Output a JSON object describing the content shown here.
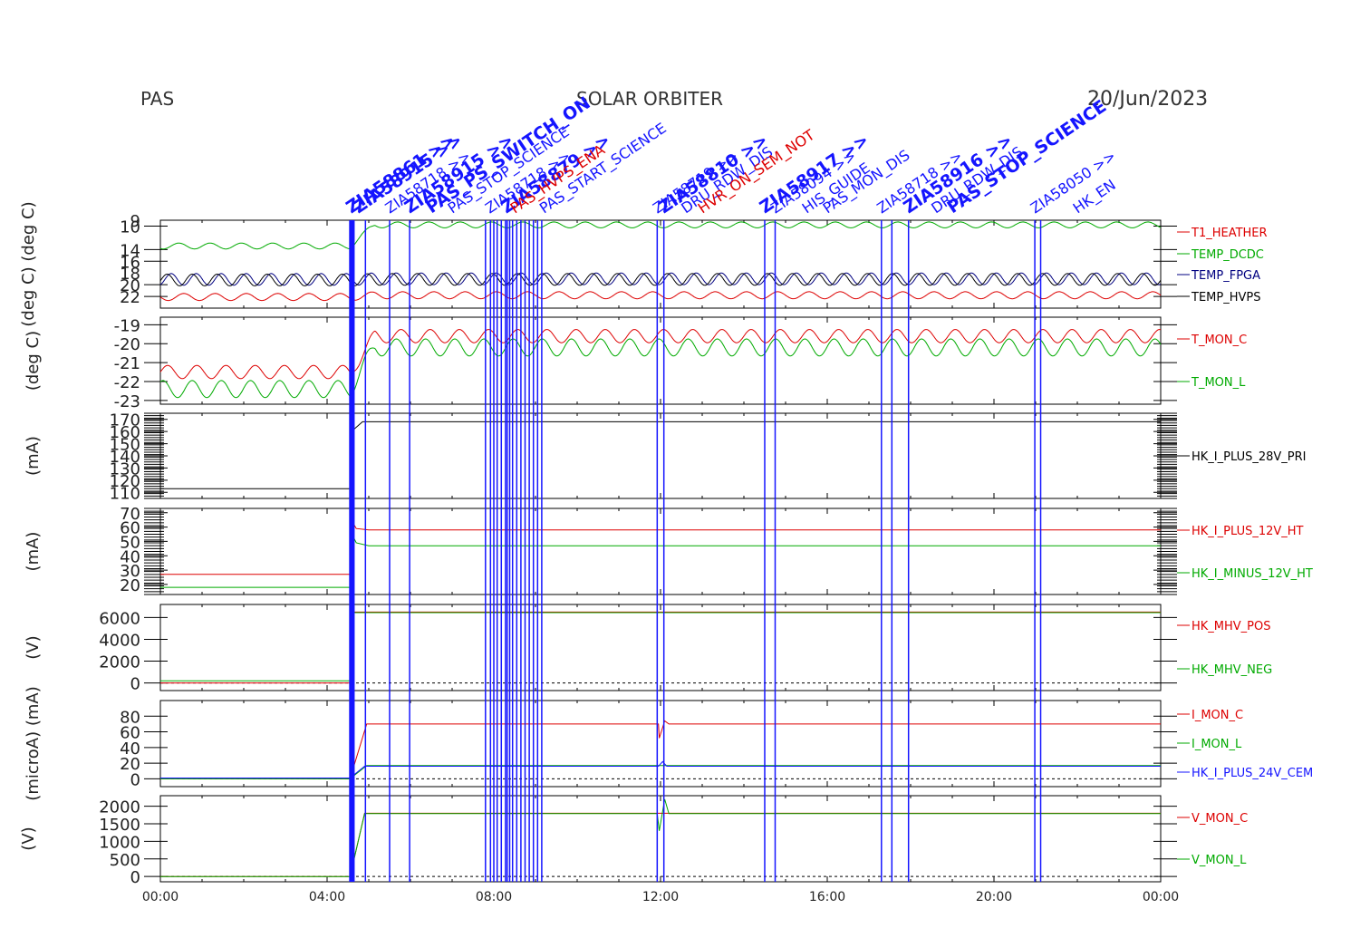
{
  "header": {
    "left": "PAS",
    "center": "SOLAR ORBITER",
    "right": "20/Jun/2023"
  },
  "colors": {
    "red": "#dd0000",
    "green": "#00aa00",
    "blue": "#1515ff",
    "black": "#000000",
    "navy": "#000080"
  },
  "x_axis": {
    "ticks": [
      "00:00",
      "04:00",
      "08:00",
      "12:00",
      "16:00",
      "20:00",
      "00:00"
    ],
    "range_hours": [
      0,
      24
    ]
  },
  "event_lines": {
    "note_hours": [
      4.55,
      4.58,
      4.61,
      4.64,
      4.92,
      5.5,
      5.98,
      7.8,
      7.92,
      8.0,
      8.08,
      8.18,
      8.28,
      8.32,
      8.38,
      8.45,
      8.55,
      8.65,
      8.75,
      8.85,
      8.95,
      9.05,
      9.15,
      11.92,
      12.08,
      14.5,
      14.75,
      17.3,
      17.55,
      17.95,
      20.98,
      21.12
    ],
    "labels": [
      {
        "text": "ZIA58861 >>",
        "hour": 4.58,
        "color": "blue",
        "bold": true
      },
      {
        "text": "ZIA58915 >>",
        "hour": 4.75,
        "color": "blue",
        "bold": true
      },
      {
        "text": "PAS_PS_SWITCH_ON",
        "hour": 6.5,
        "color": "blue",
        "bold": true
      },
      {
        "text": "ZIA58718 >>",
        "hour": 5.5,
        "color": "blue",
        "bold": false
      },
      {
        "text": "PAS_STOP_SCIENCE",
        "hour": 7.0,
        "color": "blue",
        "bold": false
      },
      {
        "text": "ZIA58915 >>",
        "hour": 5.98,
        "color": "blue",
        "bold": true
      },
      {
        "text": "ZIA58718 >>",
        "hour": 7.9,
        "color": "blue",
        "bold": false
      },
      {
        "text": "PAS_START_SCIENCE",
        "hour": 9.2,
        "color": "blue",
        "bold": false
      },
      {
        "text": "ZIA58879 >>",
        "hour": 8.3,
        "color": "blue",
        "bold": true
      },
      {
        "text": "PAS_HVPS_ENA",
        "hour": 8.5,
        "color": "red",
        "bold": false
      },
      {
        "text": "ZIA58719 >>",
        "hour": 11.92,
        "color": "blue",
        "bold": false
      },
      {
        "text": "DRU_RDW_DIS",
        "hour": 12.6,
        "color": "blue",
        "bold": false
      },
      {
        "text": "ZIA58810 >>",
        "hour": 12.08,
        "color": "blue",
        "bold": true
      },
      {
        "text": "HVR_ON_SEM_NOT",
        "hour": 13.0,
        "color": "red",
        "bold": false
      },
      {
        "text": "ZIA58917 >>",
        "hour": 14.5,
        "color": "blue",
        "bold": true
      },
      {
        "text": "HIS_GUIDE",
        "hour": 15.5,
        "color": "blue",
        "bold": false
      },
      {
        "text": "ZIA58094 >>",
        "hour": 14.75,
        "color": "blue",
        "bold": false
      },
      {
        "text": "PAS_MON_DIS",
        "hour": 16.0,
        "color": "blue",
        "bold": false
      },
      {
        "text": "ZIA58718 >>",
        "hour": 17.3,
        "color": "blue",
        "bold": false
      },
      {
        "text": "DRU_RDW_DIS",
        "hour": 18.6,
        "color": "blue",
        "bold": false
      },
      {
        "text": "ZIA58916 >>",
        "hour": 17.95,
        "color": "blue",
        "bold": true
      },
      {
        "text": "PAS_STOP_SCIENCE",
        "hour": 19.0,
        "color": "blue",
        "bold": true
      },
      {
        "text": "ZIA58050 >>",
        "hour": 20.98,
        "color": "blue",
        "bold": false
      },
      {
        "text": "HK_EN",
        "hour": 22.0,
        "color": "blue",
        "bold": false
      }
    ]
  },
  "chart_data": [
    {
      "type": "line",
      "ylabel": "(deg C) (deg C)",
      "ylim": [
        24,
        9
      ],
      "yticks": [
        10,
        14,
        16,
        20,
        22
      ],
      "ytick_labels": [
        "10",
        "14",
        "16",
        "20",
        "22"
      ],
      "extra_tick_labels": [
        "9",
        "18"
      ],
      "series": [
        {
          "name": "T1_HEATHER",
          "color": "red",
          "base_before": 22.1,
          "base_after": 21.8,
          "amp": 0.6,
          "period": 0.75,
          "step_hour": 4.55
        },
        {
          "name": "TEMP_DCDC",
          "color": "green",
          "base_before": 13.4,
          "base_after": 9.8,
          "amp": 0.5,
          "period": 0.75,
          "step_hour": 4.55
        },
        {
          "name": "TEMP_FPGA",
          "color": "navy",
          "base_before": 19.1,
          "base_after": 19.0,
          "amp": 1.0,
          "period": 0.6,
          "step_hour": 4.55
        },
        {
          "name": "TEMP_HVPS",
          "color": "black",
          "base_before": 19.2,
          "base_after": 19.1,
          "amp": 1.0,
          "period": 0.6,
          "step_hour": 4.55
        }
      ]
    },
    {
      "type": "line",
      "ylabel": "(deg C)",
      "ylim": [
        -23.2,
        -18.6
      ],
      "yticks": [
        -19,
        -20,
        -21,
        -22,
        -23
      ],
      "ytick_labels": [
        "-19",
        "-20",
        "-21",
        "-22",
        "-23"
      ],
      "series": [
        {
          "name": "T_MON_C",
          "color": "red",
          "base_before": -21.5,
          "base_after": -19.6,
          "amp": 0.35,
          "period": 0.7,
          "step_hour": 4.55
        },
        {
          "name": "T_MON_L",
          "color": "green",
          "base_before": -22.4,
          "base_after": -20.2,
          "amp": 0.45,
          "period": 0.7,
          "step_hour": 4.55
        }
      ]
    },
    {
      "type": "line",
      "ylabel": "(mA)",
      "ylim": [
        105,
        175
      ],
      "yticks": [
        110,
        120,
        130,
        140,
        150,
        160,
        170
      ],
      "ytick_labels": [
        "110",
        "120",
        "130",
        "140",
        "150",
        "160",
        "170"
      ],
      "series": [
        {
          "name": "HK_I_PLUS_28V_PRI",
          "color": "black",
          "segments": [
            [
              0,
              113
            ],
            [
              4.55,
              113
            ],
            [
              4.56,
              165
            ],
            [
              4.65,
              162
            ],
            [
              4.85,
              168
            ],
            [
              24,
              168
            ]
          ]
        }
      ]
    },
    {
      "type": "line",
      "ylabel": "(mA)",
      "ylim": [
        13,
        73
      ],
      "yticks": [
        20,
        30,
        40,
        50,
        60,
        70
      ],
      "ytick_labels": [
        "20",
        "30",
        "40",
        "50",
        "60",
        "70"
      ],
      "series": [
        {
          "name": "HK_I_PLUS_12V_HT",
          "color": "red",
          "segments": [
            [
              0,
              27
            ],
            [
              4.55,
              27
            ],
            [
              4.58,
              65
            ],
            [
              4.7,
              59
            ],
            [
              5.0,
              58
            ],
            [
              24,
              58
            ]
          ]
        },
        {
          "name": "HK_I_MINUS_12V_HT",
          "color": "green",
          "segments": [
            [
              0,
              18
            ],
            [
              4.55,
              18
            ],
            [
              4.58,
              56
            ],
            [
              4.7,
              49
            ],
            [
              5.0,
              47
            ],
            [
              24,
              47
            ]
          ]
        }
      ]
    },
    {
      "type": "line",
      "ylabel": "(V)",
      "ylim": [
        -700,
        7200
      ],
      "yticks": [
        0,
        2000,
        4000,
        6000
      ],
      "ytick_labels": [
        "0",
        "2000",
        "4000",
        "6000"
      ],
      "dashed_zero": true,
      "series": [
        {
          "name": "HK_MHV_POS",
          "color": "red",
          "segments": [
            [
              0,
              0
            ],
            [
              4.55,
              0
            ],
            [
              4.56,
              6500
            ],
            [
              24,
              6500
            ]
          ]
        },
        {
          "name": "HK_MHV_NEG",
          "color": "green",
          "segments": [
            [
              0,
              200
            ],
            [
              4.55,
              200
            ],
            [
              4.56,
              6450
            ],
            [
              24,
              6450
            ]
          ]
        }
      ]
    },
    {
      "type": "line",
      "ylabel": "(microA) (mA)",
      "ylim": [
        -10,
        100
      ],
      "yticks": [
        0,
        20,
        40,
        60,
        80
      ],
      "ytick_labels": [
        "0",
        "20",
        "40",
        "60",
        "80"
      ],
      "dashed_zero": true,
      "series": [
        {
          "name": "I_MON_C",
          "color": "red",
          "segments": [
            [
              0,
              0
            ],
            [
              4.55,
              0
            ],
            [
              4.95,
              70
            ],
            [
              11.95,
              70
            ],
            [
              11.97,
              52
            ],
            [
              12.1,
              74
            ],
            [
              12.2,
              70
            ],
            [
              24,
              70
            ]
          ]
        },
        {
          "name": "I_MON_L",
          "color": "green",
          "segments": [
            [
              0,
              0
            ],
            [
              4.55,
              0
            ],
            [
              4.95,
              17
            ],
            [
              24,
              17
            ]
          ]
        },
        {
          "name": "HK_I_PLUS_24V_CEM",
          "color": "blue",
          "segments": [
            [
              0,
              1
            ],
            [
              4.55,
              1
            ],
            [
              4.9,
              16
            ],
            [
              11.95,
              16
            ],
            [
              12.05,
              22
            ],
            [
              12.15,
              16
            ],
            [
              24,
              16
            ]
          ]
        }
      ]
    },
    {
      "type": "line",
      "ylabel": "(V)",
      "ylim": [
        -150,
        2300
      ],
      "yticks": [
        0,
        500,
        1000,
        1500,
        2000
      ],
      "ytick_labels": [
        "0",
        "500",
        "1000",
        "1500",
        "2000"
      ],
      "dashed_zero": true,
      "series": [
        {
          "name": "V_MON_C",
          "color": "red",
          "segments": [
            [
              0,
              0
            ],
            [
              4.55,
              0
            ],
            [
              4.9,
              1800
            ],
            [
              24,
              1800
            ]
          ]
        },
        {
          "name": "V_MON_L",
          "color": "green",
          "segments": [
            [
              0,
              0
            ],
            [
              4.55,
              0
            ],
            [
              4.9,
              1790
            ],
            [
              11.92,
              1790
            ],
            [
              11.97,
              1300
            ],
            [
              12.1,
              2200
            ],
            [
              12.2,
              1790
            ],
            [
              24,
              1790
            ]
          ]
        }
      ]
    }
  ]
}
